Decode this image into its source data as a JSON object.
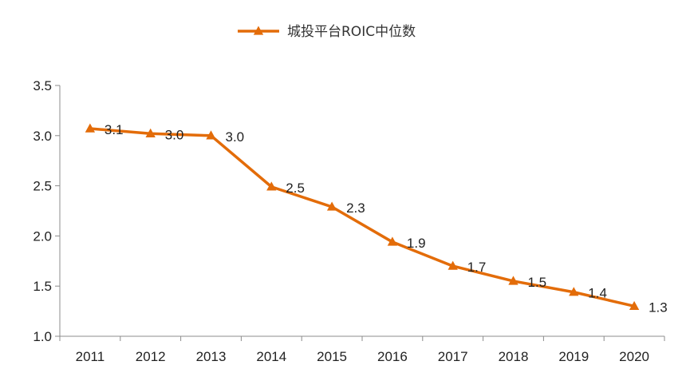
{
  "chart_data": {
    "type": "line",
    "categories": [
      "2011",
      "2012",
      "2013",
      "2014",
      "2015",
      "2016",
      "2017",
      "2018",
      "2019",
      "2020"
    ],
    "series": [
      {
        "name": "城投平台ROIC中位数",
        "values": [
          3.07,
          3.02,
          3.0,
          2.49,
          2.29,
          1.94,
          1.7,
          1.55,
          1.44,
          1.3
        ],
        "labels": [
          "3.1",
          "3.0",
          "3.0",
          "2.5",
          "2.3",
          "1.9",
          "1.7",
          "1.5",
          "1.4",
          "1.3"
        ],
        "color": "#E36C09",
        "marker": "triangle"
      }
    ],
    "ylim": [
      1.0,
      3.5
    ],
    "yticks": [
      "1.0",
      "1.5",
      "2.0",
      "2.5",
      "3.0",
      "3.5"
    ],
    "title": "",
    "xlabel": "",
    "ylabel": "",
    "grid": false,
    "legend_position": "top-center"
  }
}
